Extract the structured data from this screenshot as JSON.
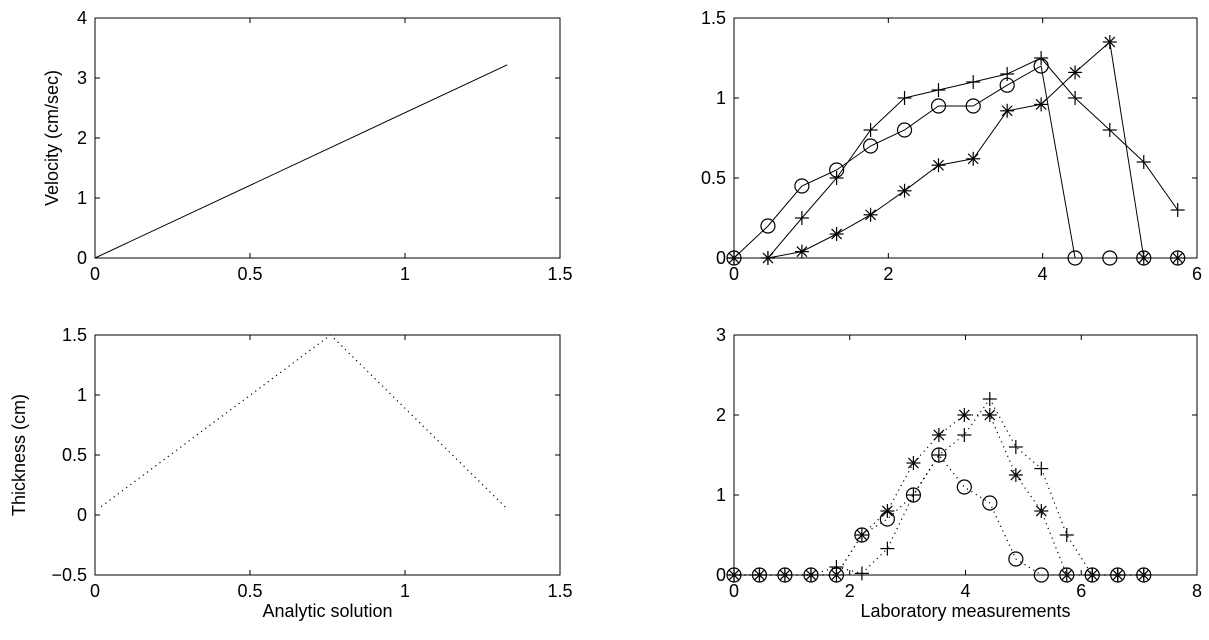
{
  "chart_data": [
    {
      "type": "line",
      "title": "",
      "xlabel": "",
      "ylabel": "Velocity (cm/sec)",
      "xlim": [
        0,
        1.5
      ],
      "ylim": [
        0,
        4
      ],
      "xticks": [
        0,
        0.5,
        1,
        1.5
      ],
      "yticks": [
        0,
        1,
        2,
        3,
        4
      ],
      "xtick_labels": [
        "0",
        "0.5",
        "1",
        "1.5"
      ],
      "ytick_labels": [
        "0",
        "1",
        "2",
        "3",
        "4"
      ],
      "grid": false,
      "series": [
        {
          "style": "solid",
          "marker": "none",
          "x": [
            0,
            1.33
          ],
          "y": [
            0,
            3.22
          ]
        }
      ]
    },
    {
      "type": "line",
      "title": "",
      "xlabel": "",
      "ylabel": "",
      "xlim": [
        0,
        6
      ],
      "ylim": [
        0,
        1.5
      ],
      "xticks": [
        0,
        2,
        4,
        6
      ],
      "yticks": [
        0,
        0.5,
        1,
        1.5
      ],
      "xtick_labels": [
        "0",
        "2",
        "4",
        "6"
      ],
      "ytick_labels": [
        "0",
        "0.5",
        "1",
        "1.5"
      ],
      "grid": false,
      "series": [
        {
          "style": "solid",
          "marker": "circle",
          "x": [
            0,
            0.44,
            0.88,
            1.33,
            1.77,
            2.21,
            2.65,
            3.1,
            3.54,
            3.98,
            4.42,
            4.87,
            5.31,
            5.75
          ],
          "y": [
            0,
            0.2,
            0.45,
            0.55,
            0.7,
            0.8,
            0.95,
            0.95,
            1.08,
            1.2,
            0,
            0,
            0,
            0
          ]
        },
        {
          "style": "solid",
          "marker": "plus",
          "x": [
            0,
            0.44,
            0.88,
            1.33,
            1.77,
            2.21,
            2.65,
            3.1,
            3.54,
            3.98,
            4.42,
            4.87,
            5.31,
            5.75
          ],
          "y": [
            0,
            0,
            0.25,
            0.5,
            0.8,
            1.0,
            1.05,
            1.1,
            1.15,
            1.25,
            1.0,
            0.8,
            0.6,
            0.3
          ]
        },
        {
          "style": "solid",
          "marker": "star",
          "x": [
            0,
            0.44,
            0.88,
            1.33,
            1.77,
            2.21,
            2.65,
            3.1,
            3.54,
            3.98,
            4.42,
            4.87,
            5.31,
            5.75
          ],
          "y": [
            0,
            0,
            0.04,
            0.15,
            0.27,
            0.42,
            0.58,
            0.62,
            0.92,
            0.96,
            1.16,
            1.35,
            0,
            0
          ]
        }
      ]
    },
    {
      "type": "line",
      "title": "",
      "xlabel": "Analytic solution",
      "ylabel": "Thickness (cm)",
      "xlim": [
        0,
        1.5
      ],
      "ylim": [
        -0.5,
        1.5
      ],
      "xticks": [
        0,
        0.5,
        1,
        1.5
      ],
      "yticks": [
        -0.5,
        0,
        0.5,
        1,
        1.5
      ],
      "xtick_labels": [
        "0",
        "0.5",
        "1",
        "1.5"
      ],
      "ytick_labels": [
        "−0.5",
        "0",
        "0.5",
        "1",
        "1.5"
      ],
      "grid": false,
      "series": [
        {
          "style": "dotted",
          "marker": "none",
          "x": [
            0.02,
            0.76,
            1.33
          ],
          "y": [
            0.07,
            1.5,
            0.05
          ]
        }
      ]
    },
    {
      "type": "line",
      "title": "",
      "xlabel": "Laboratory measurements",
      "ylabel": "",
      "xlim": [
        0,
        8
      ],
      "ylim": [
        0,
        3
      ],
      "xticks": [
        0,
        2,
        4,
        6,
        8
      ],
      "yticks": [
        0,
        1,
        2,
        3
      ],
      "xtick_labels": [
        "0",
        "2",
        "4",
        "6",
        "8"
      ],
      "ytick_labels": [
        "0",
        "1",
        "2",
        "3"
      ],
      "grid": false,
      "series": [
        {
          "style": "dotted",
          "marker": "circle",
          "x": [
            0,
            0.44,
            0.88,
            1.33,
            1.77,
            2.21,
            2.65,
            3.1,
            3.54,
            3.98,
            4.42,
            4.87,
            5.31,
            5.75,
            6.19,
            6.63,
            7.08
          ],
          "y": [
            0,
            0,
            0,
            0,
            0,
            0.5,
            0.7,
            1.0,
            1.5,
            1.1,
            0.9,
            0.2,
            0,
            0,
            0,
            0,
            0
          ]
        },
        {
          "style": "dotted",
          "marker": "plus",
          "x": [
            0,
            0.44,
            0.88,
            1.33,
            1.77,
            2.21,
            2.65,
            3.1,
            3.54,
            3.98,
            4.42,
            4.87,
            5.31,
            5.75,
            6.19,
            6.63,
            7.08
          ],
          "y": [
            0,
            0,
            0,
            0,
            0.1,
            0.02,
            0.33,
            1.0,
            1.5,
            1.75,
            2.2,
            1.6,
            1.33,
            0.5,
            0,
            0,
            0
          ]
        },
        {
          "style": "dotted",
          "marker": "star",
          "x": [
            0,
            0.44,
            0.88,
            1.33,
            1.77,
            2.21,
            2.65,
            3.1,
            3.54,
            3.98,
            4.42,
            4.87,
            5.31,
            5.75,
            6.19,
            6.63,
            7.08
          ],
          "y": [
            0,
            0,
            0,
            0,
            0,
            0.5,
            0.8,
            1.4,
            1.75,
            2.0,
            2.0,
            1.25,
            0.8,
            0,
            0,
            0,
            0
          ]
        }
      ]
    }
  ]
}
